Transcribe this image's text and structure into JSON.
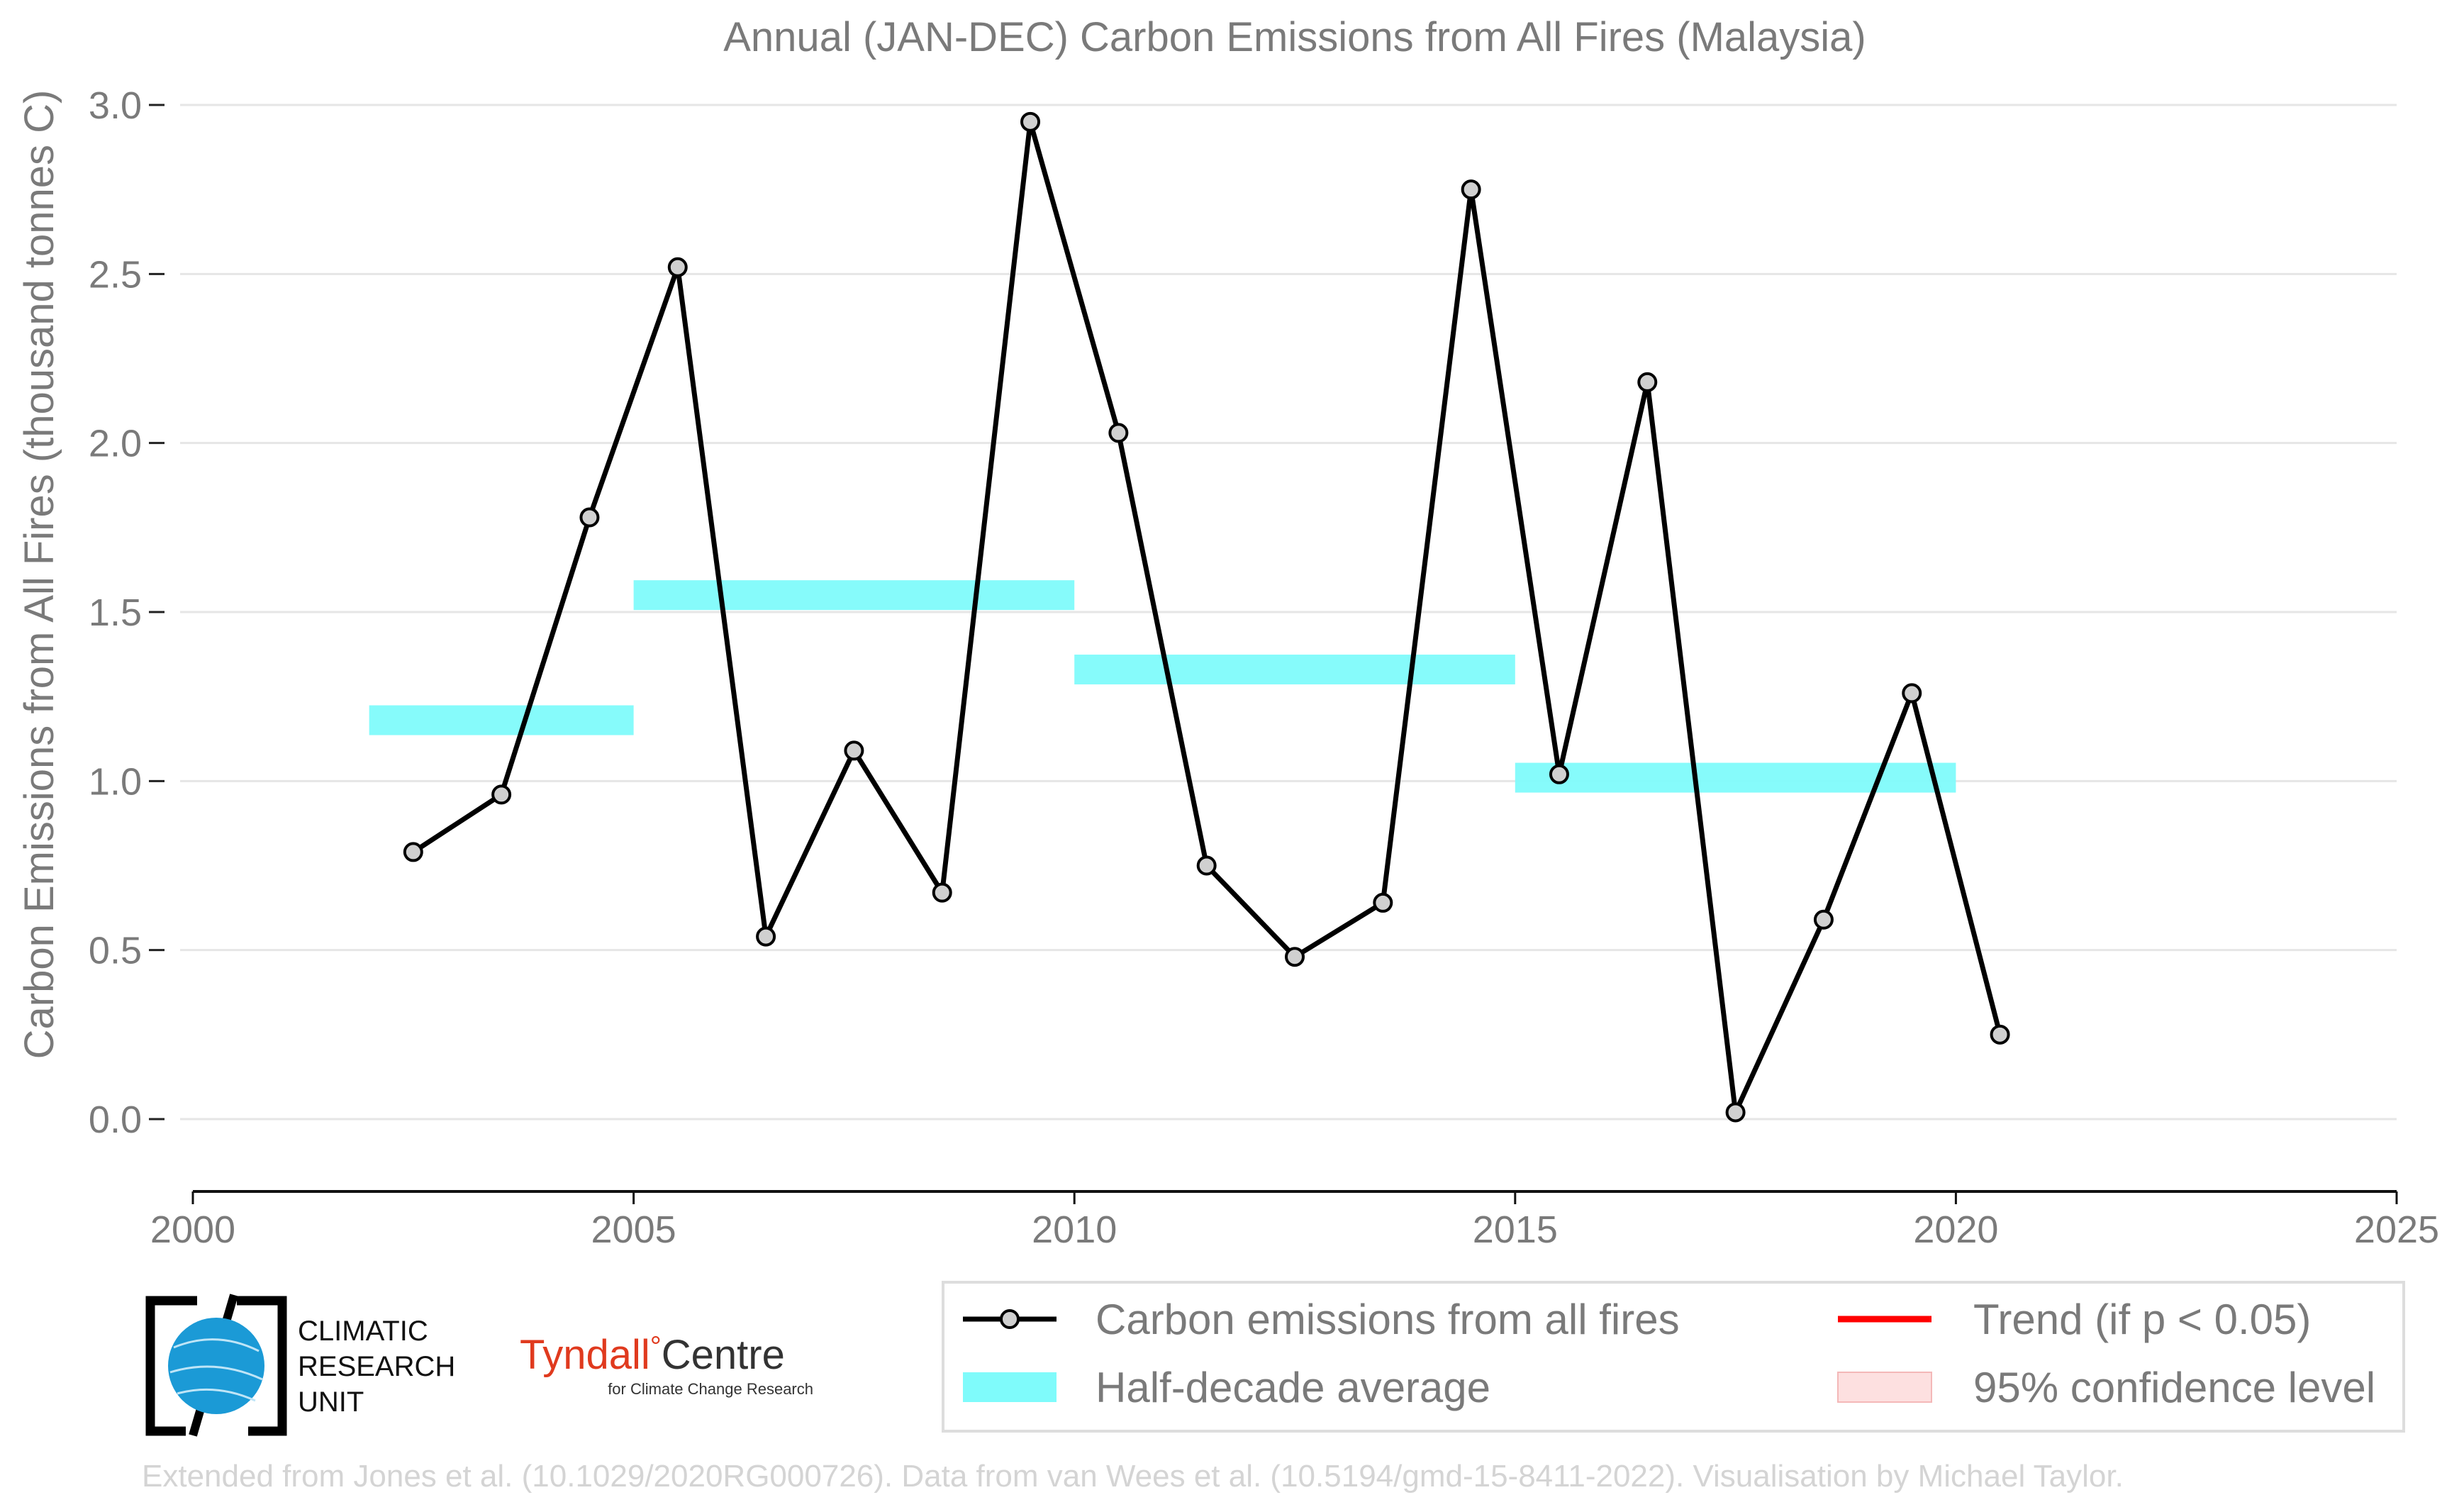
{
  "chart_data": {
    "type": "line",
    "title": "Annual (JAN-DEC) Carbon Emissions from All Fires (Malaysia)",
    "xlabel": "",
    "ylabel": "Carbon Emissions from All Fires (thousand tonnes C)",
    "xlim": [
      2000,
      2025
    ],
    "ylim": [
      -0.1,
      3.05
    ],
    "x_ticks": [
      "2000",
      "2005",
      "2010",
      "2015",
      "2020",
      "2025"
    ],
    "y_ticks": [
      "0.0",
      "0.5",
      "1.0",
      "1.5",
      "2.0",
      "2.5",
      "3.0"
    ],
    "grid": "horizontal",
    "series": [
      {
        "name": "Carbon emissions from all fires",
        "type": "line",
        "color": "#000000",
        "x": [
          2002.5,
          2003.5,
          2004.5,
          2005.5,
          2006.5,
          2007.5,
          2008.5,
          2009.5,
          2010.5,
          2011.5,
          2012.5,
          2013.5,
          2014.5,
          2015.5,
          2016.5,
          2017.5,
          2018.5,
          2019.5,
          2020.5
        ],
        "y": [
          0.79,
          0.96,
          1.78,
          2.52,
          0.54,
          1.09,
          0.67,
          2.95,
          2.03,
          0.75,
          0.48,
          0.64,
          2.75,
          1.02,
          2.18,
          0.02,
          0.59,
          1.26,
          0.25
        ]
      },
      {
        "name": "Half-decade average",
        "type": "bars",
        "color": "#7ffbfb",
        "segments": [
          {
            "x0": 2002,
            "x1": 2005,
            "y": 1.18
          },
          {
            "x0": 2005,
            "x1": 2010,
            "y": 1.55
          },
          {
            "x0": 2010,
            "x1": 2015,
            "y": 1.33
          },
          {
            "x0": 2015,
            "x1": 2020,
            "y": 1.01
          }
        ]
      }
    ],
    "legend": {
      "position": "bottom-right",
      "items": [
        {
          "label": "Carbon emissions from all fires",
          "kind": "line-marker",
          "color": "#000000"
        },
        {
          "label": "Trend (if p < 0.05)",
          "kind": "line",
          "color": "#ff0000"
        },
        {
          "label": "Half-decade average",
          "kind": "patch",
          "color": "#7ffbfb"
        },
        {
          "label": "95% confidence level",
          "kind": "patch",
          "color": "#fde0e0"
        }
      ]
    }
  },
  "logos": {
    "cru": {
      "line1": "CLIMATIC",
      "line2": "RESEARCH",
      "line3": "UNIT"
    },
    "tyndall": {
      "name_left": "Tyndall",
      "degree": "°",
      "name_right": "Centre",
      "subtitle": "for Climate Change Research"
    }
  },
  "footer": "Extended from Jones et al. (10.1029/2020RG000726). Data from van Wees et al. (10.5194/gmd-15-8411-2022). Visualisation by Michael Taylor."
}
